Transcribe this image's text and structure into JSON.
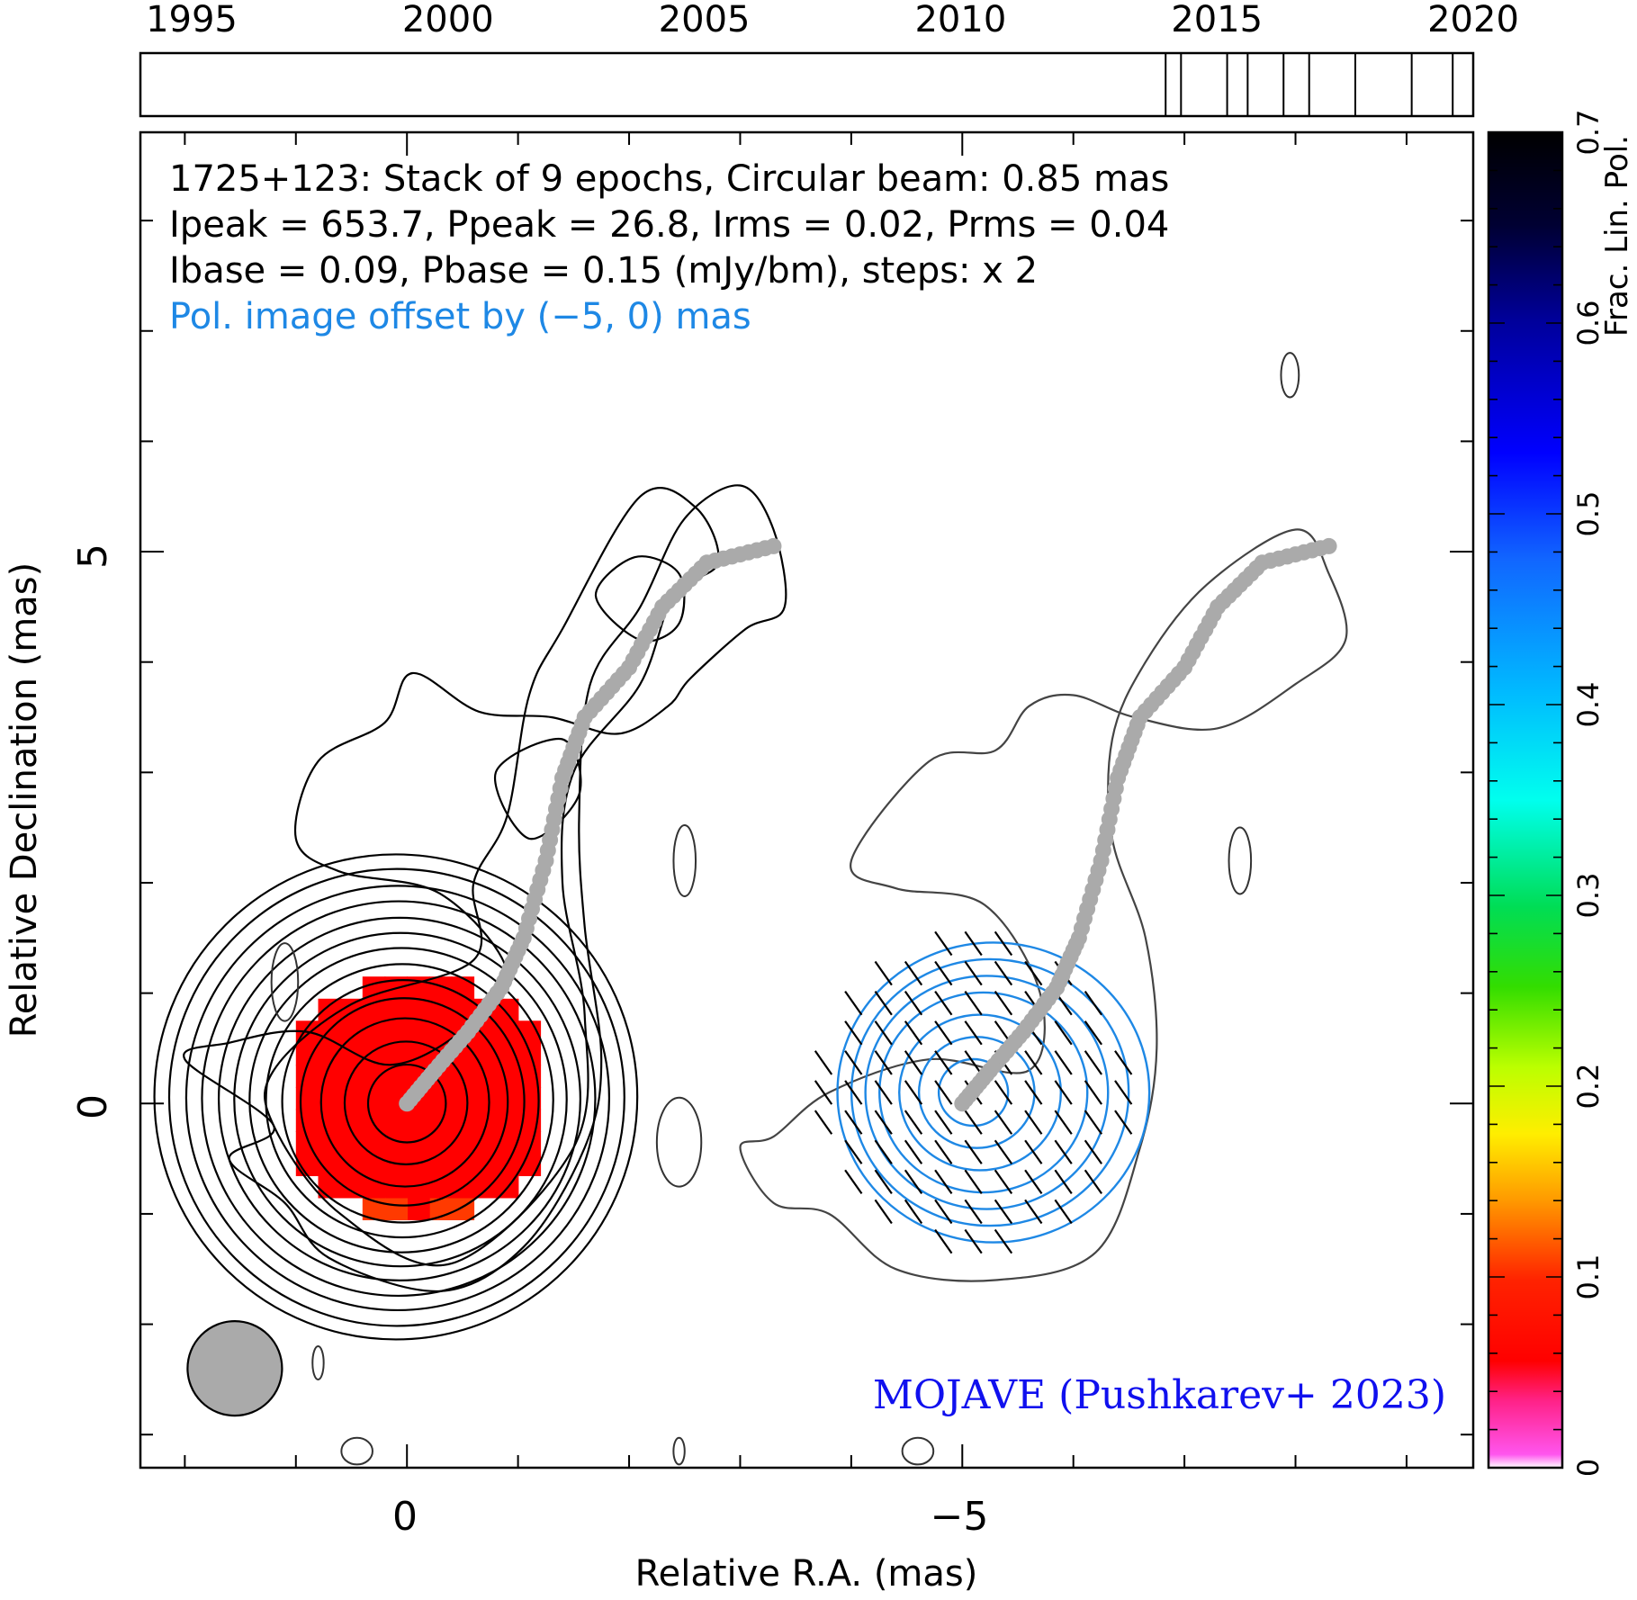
{
  "chart_data": {
    "type": "contour",
    "timeline": {
      "tick_labels": [
        "1995",
        "2000",
        "2005",
        "2010",
        "2015",
        "2020"
      ],
      "year_range": [
        1994,
        2020
      ],
      "epoch_years": [
        2014.0,
        2014.3,
        2015.2,
        2015.6,
        2016.3,
        2016.8,
        2017.7,
        2018.8,
        2019.6
      ]
    },
    "info": {
      "line1": "1725+123: Stack of 9 epochs, Circular beam: 0.85 mas",
      "line2": "Ipeak = 653.7, Ppeak = 26.8, Irms = 0.02, Prms = 0.04",
      "line3": "Ibase = 0.09, Pbase = 0.15 (mJy/bm), steps: x 2",
      "offset_note": "Pol. image offset by (−5, 0) mas"
    },
    "credit": "MOJAVE (Pushkarev+ 2023)",
    "xlabel": "Relative R.A. (mas)",
    "ylabel": "Relative Declination (mas)",
    "x_tick_labels": [
      "0",
      "−5"
    ],
    "y_tick_labels": [
      "5",
      "0"
    ],
    "xlim": [
      2.4,
      -9.6
    ],
    "ylim": [
      -3.3,
      8.8
    ],
    "colorbar": {
      "label": "Frac. Lin. Pol.",
      "range": [
        0,
        0.7
      ],
      "tick_labels": [
        "0",
        "0.1",
        "0.2",
        "0.3",
        "0.4",
        "0.5",
        "0.6",
        "0.7"
      ]
    },
    "beam": {
      "diameter_mas": 0.85,
      "center": [
        1.55,
        -2.4
      ]
    },
    "ridge_line": {
      "points": [
        [
          0,
          0
        ],
        [
          -0.25,
          0.3
        ],
        [
          -0.55,
          0.65
        ],
        [
          -0.85,
          1.05
        ],
        [
          -1.05,
          1.5
        ],
        [
          -1.25,
          2.2
        ],
        [
          -1.4,
          2.95
        ],
        [
          -1.6,
          3.5
        ],
        [
          -2.0,
          3.95
        ],
        [
          -2.3,
          4.5
        ],
        [
          -2.7,
          4.9
        ],
        [
          -3.3,
          5.05
        ]
      ]
    },
    "frac_pol_map": {
      "center": [
        -0.1,
        0.05
      ],
      "radius_mas": 1.2,
      "value": 0.05
    },
    "total_intensity_contours_mas": [
      [
        [
          2.0,
          0.4
        ],
        [
          1.2,
          -0.2
        ],
        [
          1.6,
          -0.5
        ],
        [
          1.1,
          -0.9
        ],
        [
          0.7,
          -1.4
        ],
        [
          -0.3,
          -1.7
        ],
        [
          -1.05,
          -1.3
        ],
        [
          -1.6,
          -0.4
        ],
        [
          -1.75,
          0.4
        ],
        [
          -1.6,
          1.6
        ],
        [
          -1.55,
          2.6
        ],
        [
          -1.65,
          3.8
        ],
        [
          -2.1,
          4.5
        ],
        [
          -2.5,
          5.3
        ],
        [
          -3.0,
          5.6
        ],
        [
          -3.3,
          5.2
        ],
        [
          -3.4,
          4.5
        ],
        [
          -3.05,
          4.3
        ],
        [
          -2.55,
          3.85
        ],
        [
          -2.35,
          3.6
        ],
        [
          -1.9,
          3.35
        ],
        [
          -1.3,
          3.5
        ],
        [
          -0.65,
          3.55
        ],
        [
          -0.05,
          3.9
        ],
        [
          0.2,
          3.45
        ],
        [
          0.8,
          3.1
        ],
        [
          1.0,
          2.4
        ],
        [
          0.6,
          2.1
        ],
        [
          -0.3,
          1.9
        ],
        [
          -0.9,
          1.2
        ],
        [
          -0.55,
          0.7
        ],
        [
          0.15,
          0.35
        ],
        [
          0.9,
          0.65
        ],
        [
          1.6,
          0.55
        ]
      ],
      [
        [
          1.2,
          -0.2
        ],
        [
          0.6,
          -1.0
        ],
        [
          -0.4,
          -1.45
        ],
        [
          -1.5,
          -0.4
        ],
        [
          -1.6,
          0.8
        ],
        [
          -1.4,
          2.0
        ],
        [
          -1.5,
          3.0
        ],
        [
          -2.1,
          3.8
        ],
        [
          -2.4,
          4.6
        ],
        [
          -2.8,
          4.9
        ],
        [
          -2.6,
          5.4
        ],
        [
          -2.1,
          5.5
        ],
        [
          -1.4,
          4.3
        ],
        [
          -1.1,
          3.7
        ],
        [
          -0.9,
          2.6
        ],
        [
          -0.6,
          2.0
        ],
        [
          -0.6,
          1.3
        ],
        [
          0.5,
          0.9
        ],
        [
          1.2,
          0.3
        ]
      ],
      [
        [
          -1.4,
          3.3
        ],
        [
          -0.8,
          3.0
        ],
        [
          -1.1,
          2.4
        ],
        [
          -1.55,
          2.8
        ]
      ],
      [
        [
          -1.7,
          4.6
        ],
        [
          -2.1,
          4.2
        ],
        [
          -2.45,
          4.35
        ],
        [
          -2.45,
          4.8
        ],
        [
          -2.05,
          4.95
        ]
      ]
    ],
    "total_intensity_circles": [
      {
        "center": [
          0,
          0
        ],
        "radii_mas": [
          0.35,
          0.55,
          0.75,
          0.92,
          1.07,
          1.2,
          1.33,
          1.45,
          1.57,
          1.7,
          1.82,
          1.95,
          2.06
        ]
      }
    ],
    "pol_image_contours_mas": [
      [
        [
          2.0,
          -0.4
        ],
        [
          1.7,
          -0.9
        ],
        [
          1.2,
          -1.0
        ],
        [
          0.6,
          -1.5
        ],
        [
          -0.3,
          -1.6
        ],
        [
          -1.2,
          -1.35
        ],
        [
          -1.6,
          -0.4
        ],
        [
          -1.75,
          0.5
        ],
        [
          -1.65,
          1.5
        ],
        [
          -1.35,
          2.4
        ],
        [
          -1.35,
          3.3
        ],
        [
          -1.65,
          4.0
        ],
        [
          -2.2,
          4.7
        ],
        [
          -3.0,
          5.2
        ],
        [
          -3.3,
          4.8
        ],
        [
          -3.45,
          4.2
        ],
        [
          -3.0,
          3.8
        ],
        [
          -2.3,
          3.4
        ],
        [
          -1.55,
          3.5
        ],
        [
          -1.0,
          3.7
        ],
        [
          -0.6,
          3.6
        ],
        [
          -0.3,
          3.2
        ],
        [
          0.3,
          3.1
        ],
        [
          1.0,
          2.2
        ],
        [
          0.6,
          1.95
        ],
        [
          -0.2,
          1.8
        ],
        [
          -0.7,
          1.0
        ],
        [
          -0.6,
          0.3
        ],
        [
          0.3,
          0.4
        ],
        [
          1.2,
          0.1
        ],
        [
          1.7,
          -0.3
        ]
      ]
    ],
    "pol_circles": {
      "center": [
        -5.1,
        0.1
      ],
      "radii_mas": [
        0.3,
        0.5,
        0.7,
        0.9,
        1.05,
        1.2,
        1.35
      ]
    },
    "minor_blobs": [
      {
        "center": [
          1.1,
          1.1
        ],
        "rx": 0.12,
        "ry": 0.35
      },
      {
        "center": [
          -2.5,
          2.2
        ],
        "rx": 0.1,
        "ry": 0.32
      },
      {
        "center": [
          -2.45,
          -0.35
        ],
        "rx": 0.2,
        "ry": 0.4
      },
      {
        "center": [
          -7.5,
          2.2
        ],
        "rx": 0.1,
        "ry": 0.3
      },
      {
        "center": [
          -7.95,
          6.6
        ],
        "rx": 0.08,
        "ry": 0.2
      },
      {
        "center": [
          0.8,
          -2.35
        ],
        "rx": 0.05,
        "ry": 0.15
      },
      {
        "center": [
          0.45,
          -3.15
        ],
        "rx": 0.14,
        "ry": 0.12
      },
      {
        "center": [
          -2.45,
          -3.15
        ],
        "rx": 0.05,
        "ry": 0.12
      },
      {
        "center": [
          -4.6,
          -3.15
        ],
        "rx": 0.14,
        "ry": 0.12
      }
    ]
  }
}
